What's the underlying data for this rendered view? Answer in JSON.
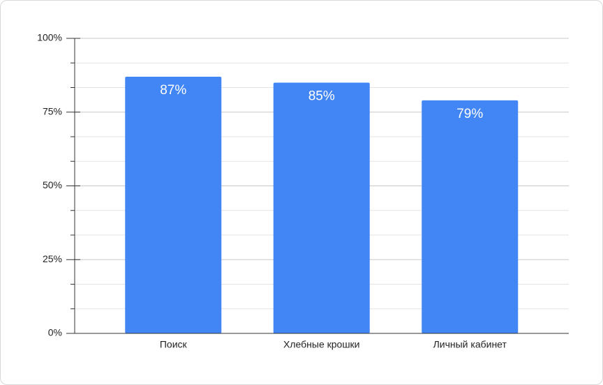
{
  "chart_data": {
    "type": "bar",
    "categories": [
      "Поиск",
      "Хлебные крошки",
      "Личный кабинет"
    ],
    "values": [
      87,
      85,
      79
    ],
    "value_labels": [
      "87%",
      "85%",
      "79%"
    ],
    "color": "#4285f4",
    "ylim": [
      0,
      100
    ],
    "yticks": [
      {
        "value": 0,
        "label": "0%"
      },
      {
        "value": 25,
        "label": "25%"
      },
      {
        "value": 50,
        "label": "50%"
      },
      {
        "value": 75,
        "label": "75%"
      },
      {
        "value": 100,
        "label": "100%"
      }
    ],
    "minor_yticks": [
      8.33,
      16.67,
      33.33,
      41.67,
      58.33,
      66.67,
      83.33,
      91.67
    ],
    "grid": true
  }
}
